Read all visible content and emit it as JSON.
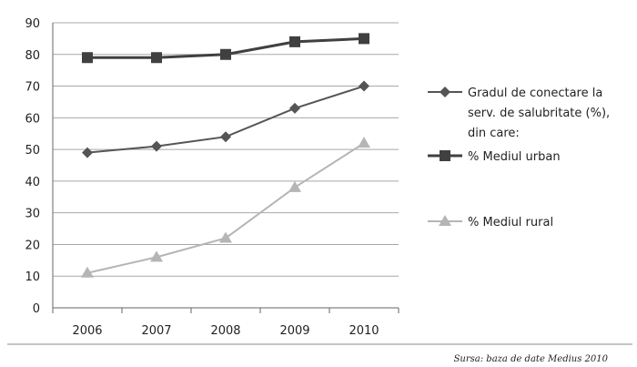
{
  "chart_data": {
    "type": "line",
    "categories": [
      "2006",
      "2007",
      "2008",
      "2009",
      "2010"
    ],
    "ylim": [
      0,
      90
    ],
    "yticks": [
      0,
      10,
      20,
      30,
      40,
      50,
      60,
      70,
      80,
      90
    ],
    "grid": "horizontal",
    "legend_position": "right",
    "series": [
      {
        "name": "Gradul de conectare la serv. de salubritate (%), din care:",
        "legend_lines": [
          "Gradul de conectare la",
          "serv. de salubritate (%),",
          "din care:"
        ],
        "values": [
          49,
          51,
          54,
          63,
          70
        ],
        "color": "#555555",
        "marker": "diamond"
      },
      {
        "name": "% Mediul urban",
        "legend_lines": [
          "% Mediul urban"
        ],
        "values": [
          79,
          79,
          80,
          84,
          85
        ],
        "color": "#404040",
        "marker": "square"
      },
      {
        "name": "% Mediul rural",
        "legend_lines": [
          "% Mediul rural"
        ],
        "values": [
          11,
          16,
          22,
          38,
          52
        ],
        "color": "#b5b5b5",
        "marker": "triangle"
      }
    ]
  },
  "source": "Sursa: baza de date Medius 2010"
}
